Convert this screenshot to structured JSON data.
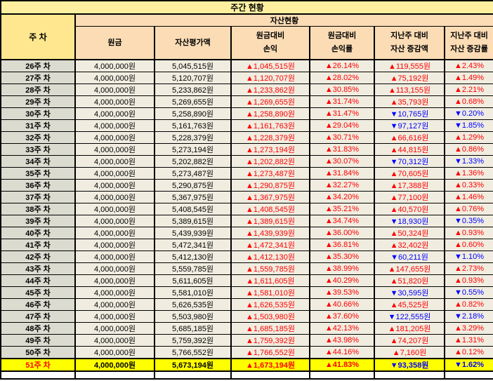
{
  "title": "주간 현황",
  "colors": {
    "title_bg": "#FFF0A0",
    "corner_bg": "#FFE78F",
    "header_bg": "#FBDCB5",
    "week_col_bg": "#DBDBD0",
    "data_cell_bg": "#F0EDE0",
    "highlight_row_bg": "#FFFF00",
    "up_color": "#FF0000",
    "down_color": "#0000FF",
    "border_color": "#000000"
  },
  "table": {
    "corner_header": "주 차",
    "group_header": "자산현황",
    "columns": [
      "원금",
      "자산평가액",
      "원금대비\n손익",
      "원금대비\n손익률",
      "지난주 대비\n자산 증감액",
      "지난주 대비\n자산 증감률"
    ]
  },
  "rows": [
    {
      "week": "26주 차",
      "principal": "4,000,000원",
      "valuation": "5,045,515원",
      "pl": "▲1,045,515원",
      "pl_rate": "▲26.14%",
      "wow": "▲119,555원",
      "wow_rate": "▲2.43%",
      "highlight": false
    },
    {
      "week": "27주 차",
      "principal": "4,000,000원",
      "valuation": "5,120,707원",
      "pl": "▲1,120,707원",
      "pl_rate": "▲28.02%",
      "wow": "▲75,192원",
      "wow_rate": "▲1.49%",
      "highlight": false
    },
    {
      "week": "28주 차",
      "principal": "4,000,000원",
      "valuation": "5,233,862원",
      "pl": "▲1,233,862원",
      "pl_rate": "▲30.85%",
      "wow": "▲113,155원",
      "wow_rate": "▲2.21%",
      "highlight": false
    },
    {
      "week": "29주 차",
      "principal": "4,000,000원",
      "valuation": "5,269,655원",
      "pl": "▲1,269,655원",
      "pl_rate": "▲31.74%",
      "wow": "▲35,793원",
      "wow_rate": "▲0.68%",
      "highlight": false
    },
    {
      "week": "30주 차",
      "principal": "4,000,000원",
      "valuation": "5,258,890원",
      "pl": "▲1,258,890원",
      "pl_rate": "▲31.47%",
      "wow": "▼10,765원",
      "wow_rate": "▼0.20%",
      "highlight": false
    },
    {
      "week": "31주 차",
      "principal": "4,000,000원",
      "valuation": "5,161,763원",
      "pl": "▲1,161,763원",
      "pl_rate": "▲29.04%",
      "wow": "▼97,127원",
      "wow_rate": "▼1.85%",
      "highlight": false
    },
    {
      "week": "32주 차",
      "principal": "4,000,000원",
      "valuation": "5,228,379원",
      "pl": "▲1,228,379원",
      "pl_rate": "▲30.71%",
      "wow": "▲66,616원",
      "wow_rate": "▲1.29%",
      "highlight": false
    },
    {
      "week": "33주 차",
      "principal": "4,000,000원",
      "valuation": "5,273,194원",
      "pl": "▲1,273,194원",
      "pl_rate": "▲31.83%",
      "wow": "▲44,815원",
      "wow_rate": "▲0.86%",
      "highlight": false
    },
    {
      "week": "34주 차",
      "principal": "4,000,000원",
      "valuation": "5,202,882원",
      "pl": "▲1,202,882원",
      "pl_rate": "▲30.07%",
      "wow": "▼70,312원",
      "wow_rate": "▼1.33%",
      "highlight": false
    },
    {
      "week": "35주 차",
      "principal": "4,000,000원",
      "valuation": "5,273,487원",
      "pl": "▲1,273,487원",
      "pl_rate": "▲31.84%",
      "wow": "▲70,605원",
      "wow_rate": "▲1.36%",
      "highlight": false
    },
    {
      "week": "36주 차",
      "principal": "4,000,000원",
      "valuation": "5,290,875원",
      "pl": "▲1,290,875원",
      "pl_rate": "▲32.27%",
      "wow": "▲17,388원",
      "wow_rate": "▲0.33%",
      "highlight": false
    },
    {
      "week": "37주 차",
      "principal": "4,000,000원",
      "valuation": "5,367,975원",
      "pl": "▲1,367,975원",
      "pl_rate": "▲34.20%",
      "wow": "▲77,100원",
      "wow_rate": "▲1.46%",
      "highlight": false
    },
    {
      "week": "38주 차",
      "principal": "4,000,000원",
      "valuation": "5,408,545원",
      "pl": "▲1,408,545원",
      "pl_rate": "▲35.21%",
      "wow": "▲40,570원",
      "wow_rate": "▲0.76%",
      "highlight": false
    },
    {
      "week": "39주 차",
      "principal": "4,000,000원",
      "valuation": "5,389,615원",
      "pl": "▲1,389,615원",
      "pl_rate": "▲34.74%",
      "wow": "▼18,930원",
      "wow_rate": "▼0.35%",
      "highlight": false
    },
    {
      "week": "40주 차",
      "principal": "4,000,000원",
      "valuation": "5,439,939원",
      "pl": "▲1,439,939원",
      "pl_rate": "▲36.00%",
      "wow": "▲50,324원",
      "wow_rate": "▲0.93%",
      "highlight": false
    },
    {
      "week": "41주 차",
      "principal": "4,000,000원",
      "valuation": "5,472,341원",
      "pl": "▲1,472,341원",
      "pl_rate": "▲36.81%",
      "wow": "▲32,402원",
      "wow_rate": "▲0.60%",
      "highlight": false
    },
    {
      "week": "42주 차",
      "principal": "4,000,000원",
      "valuation": "5,412,130원",
      "pl": "▲1,412,130원",
      "pl_rate": "▲35.30%",
      "wow": "▼60,211원",
      "wow_rate": "▼1.10%",
      "highlight": false
    },
    {
      "week": "43주 차",
      "principal": "4,000,000원",
      "valuation": "5,559,785원",
      "pl": "▲1,559,785원",
      "pl_rate": "▲38.99%",
      "wow": "▲147,655원",
      "wow_rate": "▲2.73%",
      "highlight": false
    },
    {
      "week": "44주 차",
      "principal": "4,000,000원",
      "valuation": "5,611,605원",
      "pl": "▲1,611,605원",
      "pl_rate": "▲40.29%",
      "wow": "▲51,820원",
      "wow_rate": "▲0.93%",
      "highlight": false
    },
    {
      "week": "45주 차",
      "principal": "4,000,000원",
      "valuation": "5,581,010원",
      "pl": "▲1,581,010원",
      "pl_rate": "▲39.53%",
      "wow": "▼30,595원",
      "wow_rate": "▼0.55%",
      "highlight": false
    },
    {
      "week": "46주 차",
      "principal": "4,000,000원",
      "valuation": "5,626,535원",
      "pl": "▲1,626,535원",
      "pl_rate": "▲40.66%",
      "wow": "▲45,525원",
      "wow_rate": "▲0.82%",
      "highlight": false
    },
    {
      "week": "47주 차",
      "principal": "4,000,000원",
      "valuation": "5,503,980원",
      "pl": "▲1,503,980원",
      "pl_rate": "▲37.60%",
      "wow": "▼122,555원",
      "wow_rate": "▼2.18%",
      "highlight": false
    },
    {
      "week": "48주 차",
      "principal": "4,000,000원",
      "valuation": "5,685,185원",
      "pl": "▲1,685,185원",
      "pl_rate": "▲42.13%",
      "wow": "▲181,205원",
      "wow_rate": "▲3.29%",
      "highlight": false
    },
    {
      "week": "49주 차",
      "principal": "4,000,000원",
      "valuation": "5,759,392원",
      "pl": "▲1,759,392원",
      "pl_rate": "▲43.98%",
      "wow": "▲74,207원",
      "wow_rate": "▲1.31%",
      "highlight": false
    },
    {
      "week": "50주 차",
      "principal": "4,000,000원",
      "valuation": "5,766,552원",
      "pl": "▲1,766,552원",
      "pl_rate": "▲44.16%",
      "wow": "▲7,160원",
      "wow_rate": "▲0.12%",
      "highlight": false
    },
    {
      "week": "51주 차",
      "principal": "4,000,000원",
      "valuation": "5,673,194원",
      "pl": "▲1,673,194원",
      "pl_rate": "▲41.83%",
      "wow": "▼93,358원",
      "wow_rate": "▼1.62%",
      "highlight": true
    }
  ]
}
